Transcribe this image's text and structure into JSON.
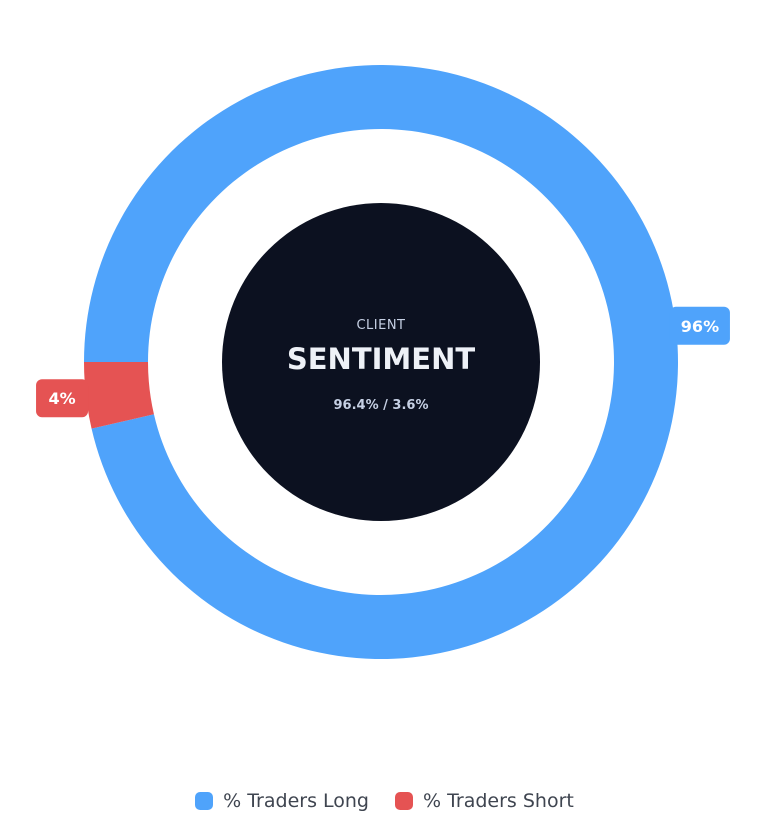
{
  "chart_data": {
    "type": "pie",
    "variant": "donut",
    "categories": [
      "% Traders Long",
      "% Traders Short"
    ],
    "values": [
      96.4,
      3.6
    ],
    "slice_labels": [
      "96%",
      "4%"
    ],
    "colors": [
      "#4fa3fb",
      "#e55353"
    ],
    "center": {
      "label_top": "CLIENT",
      "label_main": "SENTIMENT",
      "label_ratio": "96.4% / 3.6%"
    },
    "legend_position": "bottom"
  },
  "legend": {
    "items": [
      {
        "label": "% Traders Long",
        "color": "#4fa3fb"
      },
      {
        "label": "% Traders Short",
        "color": "#e55353"
      }
    ]
  },
  "theme": {
    "center_fill": "#0c1120",
    "center_text_small": "#c6d0e4",
    "center_text_main": "#eef1f7",
    "center_text_ratio": "#c6d0e4",
    "label_text": "#ffffff"
  }
}
